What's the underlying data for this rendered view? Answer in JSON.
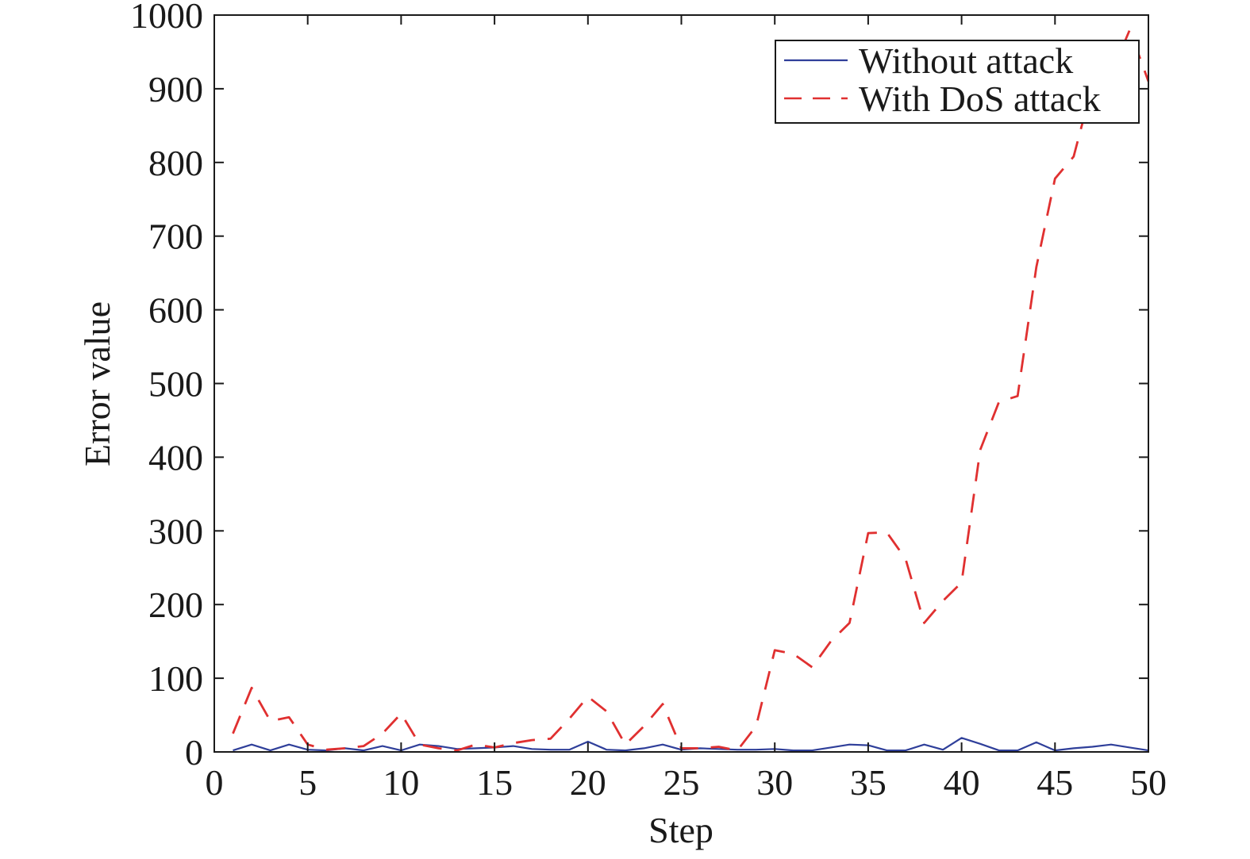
{
  "chart_data": {
    "type": "line",
    "title": "",
    "xlabel": "Step",
    "ylabel": "Error value",
    "xlim": [
      0,
      50
    ],
    "ylim": [
      0,
      1000
    ],
    "xticks": [
      0,
      5,
      10,
      15,
      20,
      25,
      30,
      35,
      40,
      45,
      50
    ],
    "yticks": [
      0,
      100,
      200,
      300,
      400,
      500,
      600,
      700,
      800,
      900,
      1000
    ],
    "grid": false,
    "legend_position": "top-right",
    "series": [
      {
        "name": "Without attack",
        "color": "#2f3f9a",
        "style": "solid",
        "x": [
          1,
          2,
          3,
          4,
          5,
          6,
          7,
          8,
          9,
          10,
          11,
          12,
          13,
          14,
          15,
          16,
          17,
          18,
          19,
          20,
          21,
          22,
          23,
          24,
          25,
          26,
          27,
          28,
          29,
          30,
          31,
          32,
          33,
          34,
          35,
          36,
          37,
          38,
          39,
          40,
          41,
          42,
          43,
          44,
          45,
          46,
          47,
          48,
          49,
          50
        ],
        "y": [
          2,
          10,
          2,
          10,
          3,
          2,
          5,
          2,
          8,
          2,
          10,
          8,
          4,
          5,
          6,
          8,
          4,
          3,
          3,
          14,
          3,
          2,
          5,
          10,
          3,
          5,
          4,
          3,
          3,
          4,
          2,
          2,
          6,
          10,
          9,
          2,
          2,
          10,
          3,
          19,
          11,
          2,
          2,
          13,
          2,
          5,
          7,
          10,
          6,
          2
        ]
      },
      {
        "name": "With DoS attack",
        "color": "#e03030",
        "style": "dashed",
        "x": [
          1,
          2,
          3,
          4,
          5,
          6,
          7,
          8,
          9,
          10,
          11,
          12,
          13,
          14,
          15,
          16,
          17,
          18,
          19,
          20,
          21,
          22,
          23,
          24,
          25,
          26,
          27,
          28,
          29,
          30,
          31,
          32,
          33,
          34,
          35,
          36,
          37,
          38,
          39,
          40,
          41,
          42,
          43,
          44,
          45,
          46,
          47,
          48,
          49,
          50
        ],
        "y": [
          25,
          87,
          42,
          47,
          10,
          3,
          5,
          8,
          25,
          52,
          10,
          5,
          2,
          10,
          6,
          12,
          16,
          18,
          45,
          75,
          55,
          10,
          35,
          65,
          5,
          5,
          7,
          2,
          35,
          138,
          133,
          115,
          150,
          175,
          297,
          298,
          262,
          175,
          205,
          230,
          410,
          475,
          483,
          658,
          778,
          808,
          905,
          920,
          980,
          910
        ]
      }
    ]
  }
}
